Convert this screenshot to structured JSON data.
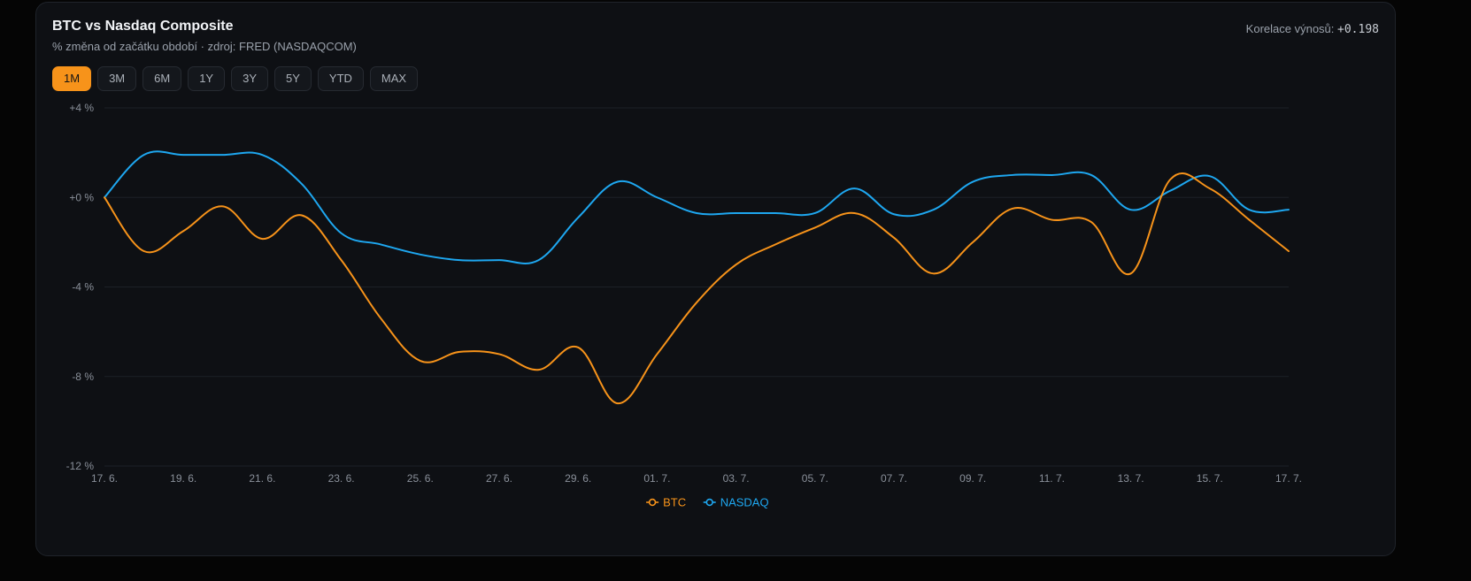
{
  "header": {
    "title": "BTC vs Nasdaq Composite",
    "subtitle": "% změna od začátku období · zdroj: FRED (NASDAQCOM)",
    "correlation_label": "Korelace výnosů:",
    "correlation_value": "+0.198"
  },
  "ranges": [
    {
      "label": "1M",
      "active": true
    },
    {
      "label": "3M",
      "active": false
    },
    {
      "label": "6M",
      "active": false
    },
    {
      "label": "1Y",
      "active": false
    },
    {
      "label": "3Y",
      "active": false
    },
    {
      "label": "5Y",
      "active": false
    },
    {
      "label": "YTD",
      "active": false
    },
    {
      "label": "MAX",
      "active": false
    }
  ],
  "colors": {
    "btc": "#f7931a",
    "nasdaq": "#1ea7f0",
    "grid": "#1c2027",
    "accent": "#f7931a"
  },
  "chart_data": {
    "type": "line",
    "ylim": [
      -12,
      4
    ],
    "yticks": [
      4,
      0,
      -4,
      -8,
      -12
    ],
    "ytick_labels": [
      "+4 %",
      "+0 %",
      "-4 %",
      "-8 %",
      "-12 %"
    ],
    "xlim": [
      0,
      30
    ],
    "xticks": [
      0,
      2,
      4,
      6,
      8,
      10,
      12,
      14,
      16,
      18,
      20,
      22,
      24,
      26,
      28,
      30
    ],
    "xtick_labels": [
      "17. 6.",
      "19. 6.",
      "21. 6.",
      "23. 6.",
      "25. 6.",
      "27. 6.",
      "29. 6.",
      "01. 7.",
      "03. 7.",
      "05. 7.",
      "07. 7.",
      "09. 7.",
      "11. 7.",
      "13. 7.",
      "15. 7.",
      "17. 7."
    ],
    "grid": true,
    "legend_position": "bottom-center",
    "series": [
      {
        "name": "BTC",
        "color": "#f7931a",
        "points": [
          [
            0,
            0.0
          ],
          [
            1,
            -2.4
          ],
          [
            2,
            -1.5
          ],
          [
            3,
            -0.4
          ],
          [
            4,
            -1.85
          ],
          [
            5,
            -0.8
          ],
          [
            6,
            -2.8
          ],
          [
            7,
            -5.4
          ],
          [
            8,
            -7.3
          ],
          [
            9,
            -6.9
          ],
          [
            10,
            -7.0
          ],
          [
            11,
            -7.7
          ],
          [
            12,
            -6.7
          ],
          [
            13,
            -9.2
          ],
          [
            14,
            -7.0
          ],
          [
            15,
            -4.7
          ],
          [
            16,
            -3.0
          ],
          [
            17,
            -2.1
          ],
          [
            18,
            -1.35
          ],
          [
            19,
            -0.7
          ],
          [
            20,
            -1.8
          ],
          [
            21,
            -3.4
          ],
          [
            22,
            -2.0
          ],
          [
            23,
            -0.5
          ],
          [
            24,
            -1.0
          ],
          [
            25,
            -1.1
          ],
          [
            26,
            -3.4
          ],
          [
            27,
            0.8
          ],
          [
            28,
            0.4
          ],
          [
            29,
            -1.0
          ],
          [
            30,
            -2.4
          ]
        ]
      },
      {
        "name": "NASDAQ",
        "color": "#1ea7f0",
        "points": [
          [
            0,
            0.0
          ],
          [
            1,
            1.9
          ],
          [
            2,
            1.9
          ],
          [
            3,
            1.9
          ],
          [
            4,
            1.9
          ],
          [
            5,
            0.6
          ],
          [
            6,
            -1.6
          ],
          [
            7,
            -2.1
          ],
          [
            8,
            -2.55
          ],
          [
            9,
            -2.8
          ],
          [
            10,
            -2.8
          ],
          [
            11,
            -2.8
          ],
          [
            12,
            -0.9
          ],
          [
            13,
            0.7
          ],
          [
            14,
            0.0
          ],
          [
            15,
            -0.7
          ],
          [
            16,
            -0.7
          ],
          [
            17,
            -0.7
          ],
          [
            18,
            -0.7
          ],
          [
            19,
            0.4
          ],
          [
            20,
            -0.75
          ],
          [
            21,
            -0.55
          ],
          [
            22,
            0.7
          ],
          [
            23,
            1.0
          ],
          [
            24,
            1.0
          ],
          [
            25,
            1.0
          ],
          [
            26,
            -0.55
          ],
          [
            27,
            0.3
          ],
          [
            28,
            0.95
          ],
          [
            29,
            -0.55
          ],
          [
            30,
            -0.55
          ]
        ]
      }
    ]
  }
}
